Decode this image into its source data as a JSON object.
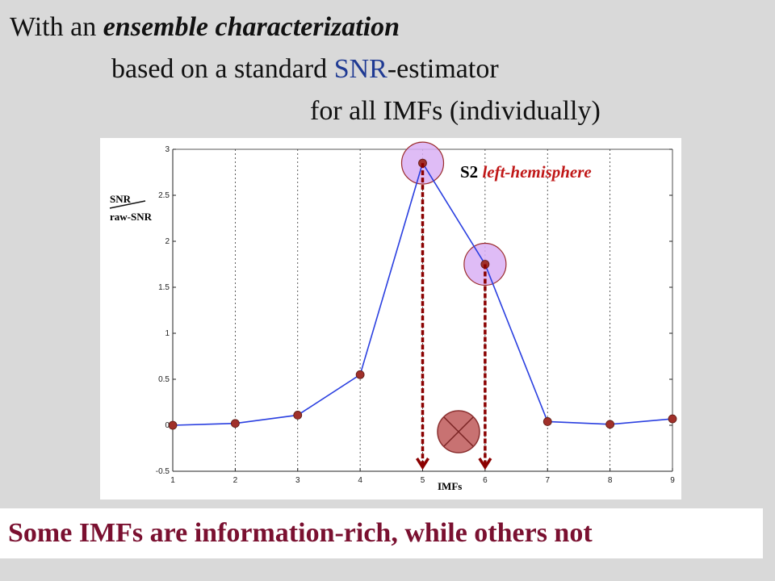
{
  "heading": {
    "line1_prefix": "With an ",
    "line1_emphasis": "ensemble characterization",
    "line2_prefix": "based on a standard ",
    "line2_snr": "SNR",
    "line2_suffix": "-estimator",
    "line3": "for all IMFs (individually)"
  },
  "chart_data": {
    "type": "line",
    "x": [
      1,
      2,
      3,
      4,
      5,
      6,
      7,
      8,
      9
    ],
    "series": [
      {
        "values": [
          0.0,
          0.02,
          0.11,
          0.55,
          2.85,
          1.75,
          0.04,
          0.01,
          0.07
        ]
      }
    ],
    "xlim": [
      1,
      9
    ],
    "ylim": [
      -0.5,
      3
    ],
    "xticks": [
      "1",
      "2",
      "3",
      "4",
      "5",
      "6",
      "7",
      "8",
      "9"
    ],
    "yticks": [
      "-0.5",
      "0",
      "0.5",
      "1",
      "1.5",
      "2",
      "2.5",
      "3"
    ],
    "xlabel": "IMFs",
    "ylabel_top": "SNR",
    "ylabel_bottom": "raw-SNR",
    "grid": "x-dashed",
    "annotation_prefix": "S2 ",
    "annotation_emphasis": "left-hemisphere",
    "highlighted_points": [
      5,
      6
    ],
    "colors": {
      "line": "#2a3fe0",
      "marker": "#a0302a",
      "highlight_fill": "#d9b0f5",
      "arrow": "#8b0000"
    }
  },
  "footer": {
    "text": "Some IMFs are information-rich, while others not"
  }
}
